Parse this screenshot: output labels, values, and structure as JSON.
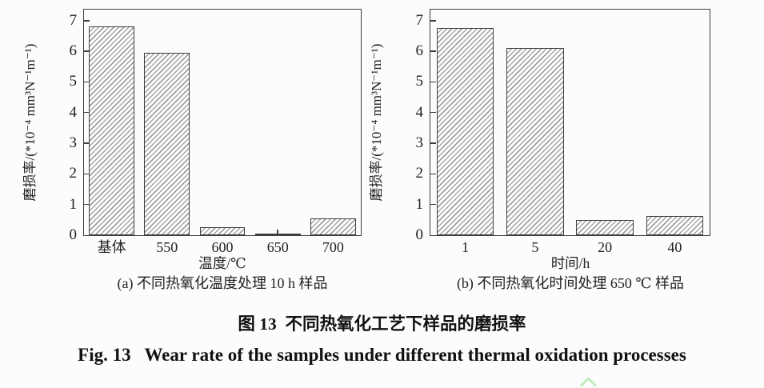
{
  "figure_caption": {
    "zh": "图 13  不同热氧化工艺下样品的磨损率",
    "en": "Fig. 13   Wear rate of the samples under different thermal oxidation processes"
  },
  "colors": {
    "background": "#fcfcfc",
    "frame": "#3f3f3f",
    "hatch": "#8f8f8f",
    "bar_fill": "#fcfcfc",
    "text": "#1c1c1c",
    "caret_green": "#bcebbc"
  },
  "decoration": {
    "caret_icon": "chevron-up"
  },
  "chart_data": [
    {
      "type": "bar",
      "panel": "a",
      "title": "(a) 不同热氧化温度处理 10 h 样品",
      "categories": [
        "基体",
        "550",
        "600",
        "650",
        "700"
      ],
      "values": [
        6.8,
        5.95,
        0.27,
        0.04,
        0.55
      ],
      "xlabel": "温度/℃",
      "ylabel": "磨损率/(*10⁻⁴ mm³N⁻¹m⁻¹)",
      "ylim": [
        0,
        7.36
      ],
      "yticks": [
        0,
        1,
        2,
        3,
        4,
        5,
        6,
        7
      ],
      "grid": false,
      "legend": null,
      "bar_style": {
        "hatch": "diagonal-forward",
        "hatch_color": "#8f8f8f",
        "edge_color": "#3f3f3f",
        "fill": "#fcfcfc",
        "width_fraction": 0.82
      }
    },
    {
      "type": "bar",
      "panel": "b",
      "title": "(b) 不同热氧化时间处理 650 ℃ 样品",
      "categories": [
        "1",
        "5",
        "20",
        "40"
      ],
      "values": [
        6.75,
        6.1,
        0.5,
        0.62
      ],
      "xlabel": "时间/h",
      "ylabel": "磨损率/(*10⁻⁴ mm³N⁻¹m⁻¹)",
      "ylim": [
        0,
        7.36
      ],
      "yticks": [
        0,
        1,
        2,
        3,
        4,
        5,
        6,
        7
      ],
      "grid": false,
      "legend": null,
      "bar_style": {
        "hatch": "diagonal-forward",
        "hatch_color": "#8f8f8f",
        "edge_color": "#3f3f3f",
        "fill": "#fcfcfc",
        "width_fraction": 0.82
      }
    }
  ]
}
